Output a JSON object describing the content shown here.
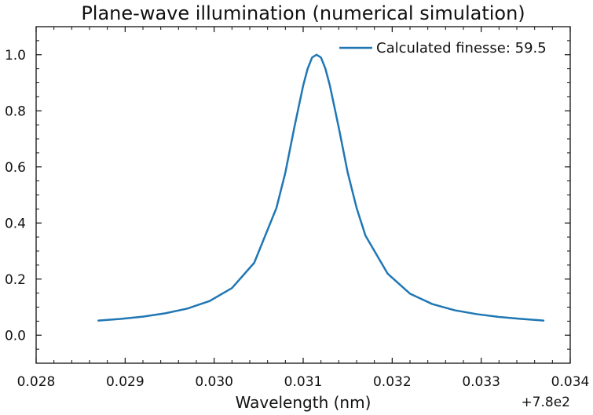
{
  "chart_data": {
    "type": "line",
    "title": "Plane-wave illumination (numerical simulation)",
    "xlabel": "Wavelength (nm)",
    "ylabel": "",
    "x_offset_label": "+7.8e2",
    "xlim": [
      0.028,
      0.034
    ],
    "ylim": [
      -0.1,
      1.1
    ],
    "xticks": [
      0.028,
      0.029,
      0.03,
      0.031,
      0.032,
      0.033,
      0.034
    ],
    "xtick_labels": [
      "0.028",
      "0.029",
      "0.030",
      "0.031",
      "0.032",
      "0.033",
      "0.034"
    ],
    "yticks": [
      0.0,
      0.2,
      0.4,
      0.6,
      0.8,
      1.0
    ],
    "ytick_labels": [
      "0.0",
      "0.2",
      "0.4",
      "0.6",
      "0.8",
      "1.0"
    ],
    "grid": false,
    "legend_position": "top-right",
    "series": [
      {
        "name": "Calculated finesse: 59.5",
        "color": "#1f77b4",
        "x": [
          0.0287,
          0.02895,
          0.0292,
          0.02945,
          0.0297,
          0.02995,
          0.0302,
          0.03045,
          0.0307,
          0.0308,
          0.0309,
          0.031,
          0.03105,
          0.0311,
          0.03115,
          0.0312,
          0.03125,
          0.0313,
          0.03135,
          0.0314,
          0.0315,
          0.0316,
          0.0317,
          0.03195,
          0.0322,
          0.03245,
          0.0327,
          0.03295,
          0.0332,
          0.03345,
          0.0337
        ],
        "y": [
          0.052,
          0.058,
          0.066,
          0.078,
          0.095,
          0.122,
          0.168,
          0.258,
          0.454,
          0.58,
          0.74,
          0.89,
          0.95,
          0.99,
          1.0,
          0.99,
          0.95,
          0.89,
          0.815,
          0.74,
          0.58,
          0.454,
          0.355,
          0.219,
          0.148,
          0.111,
          0.089,
          0.075,
          0.065,
          0.058,
          0.052
        ]
      }
    ]
  }
}
